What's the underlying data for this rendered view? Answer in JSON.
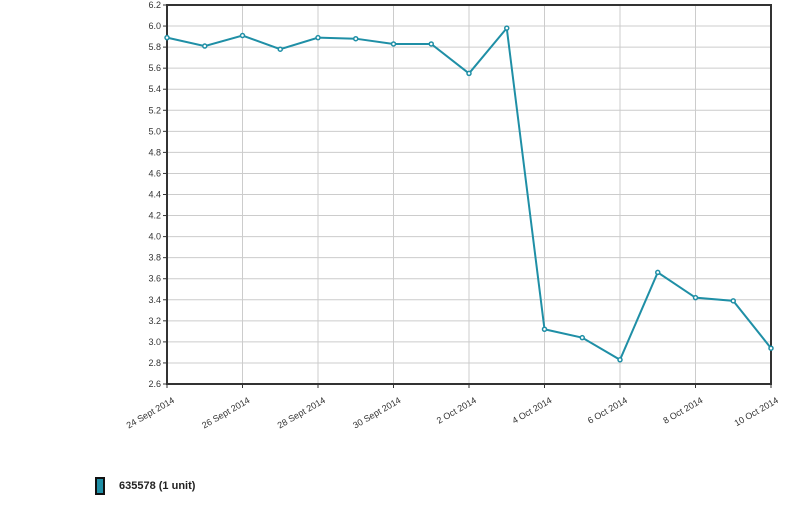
{
  "chart_data": {
    "type": "line",
    "x": [
      "24 Sept 2014",
      null,
      "26 Sept 2014",
      null,
      "28 Sept 2014",
      null,
      "30 Sept 2014",
      null,
      "2 Oct 2014",
      null,
      "4 Oct 2014",
      null,
      "6 Oct 2014",
      null,
      "8 Oct 2014",
      null,
      "10 Oct 2014"
    ],
    "series": [
      {
        "name": "635578 (1 unit)",
        "color": "#1f8fa6",
        "values": [
          5.89,
          5.81,
          5.91,
          5.78,
          5.89,
          5.88,
          5.83,
          5.83,
          5.55,
          5.98,
          3.12,
          3.04,
          2.83,
          3.66,
          3.42,
          3.39,
          2.94
        ]
      }
    ],
    "ylim": [
      2.6,
      6.2
    ],
    "yticks": [
      2.6,
      2.8,
      {
        "value": 3,
        "label": "3.0"
      },
      3.2,
      3.4,
      3.6,
      3.8,
      {
        "value": 4,
        "label": "4.0"
      },
      4.2,
      4.4,
      4.6,
      4.8,
      {
        "value": 5,
        "label": "5.0"
      },
      5.2,
      5.4,
      5.6,
      5.8,
      {
        "value": 6,
        "label": "6.0"
      },
      6.2
    ],
    "grid": true
  }
}
